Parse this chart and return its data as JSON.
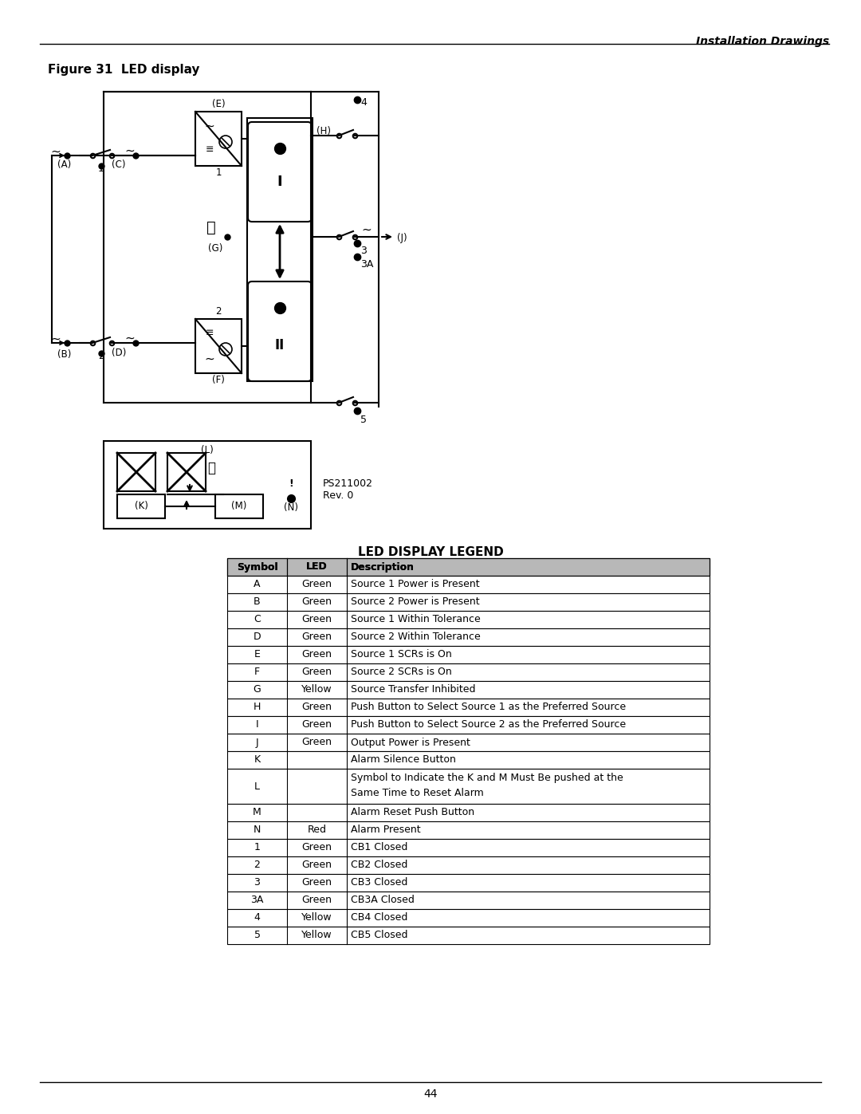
{
  "header_text": "Installation Drawings",
  "figure_title": "Figure 31  LED display",
  "legend_title": "LED DISPLAY LEGEND",
  "page_number": "44",
  "ps_number": "PS211002\nRev. 0",
  "table_headers": [
    "Symbol",
    "LED",
    "Description"
  ],
  "table_rows": [
    [
      "A",
      "Green",
      "Source 1 Power is Present"
    ],
    [
      "B",
      "Green",
      "Source 2 Power is Present"
    ],
    [
      "C",
      "Green",
      "Source 1 Within Tolerance"
    ],
    [
      "D",
      "Green",
      "Source 2 Within Tolerance"
    ],
    [
      "E",
      "Green",
      "Source 1 SCRs is On"
    ],
    [
      "F",
      "Green",
      "Source 2 SCRs is On"
    ],
    [
      "G",
      "Yellow",
      "Source Transfer Inhibited"
    ],
    [
      "H",
      "Green",
      "Push Button to Select Source 1 as the Preferred Source"
    ],
    [
      "I",
      "Green",
      "Push Button to Select Source 2 as the Preferred Source"
    ],
    [
      "J",
      "Green",
      "Output Power is Present"
    ],
    [
      "K",
      "",
      "Alarm Silence Button"
    ],
    [
      "L",
      "",
      "Symbol to Indicate the K and M Must Be pushed at the\nSame Time to Reset Alarm"
    ],
    [
      "M",
      "",
      "Alarm Reset Push Button"
    ],
    [
      "N",
      "Red",
      "Alarm Present"
    ],
    [
      "1",
      "Green",
      "CB1 Closed"
    ],
    [
      "2",
      "Green",
      "CB2 Closed"
    ],
    [
      "3",
      "Green",
      "CB3 Closed"
    ],
    [
      "3A",
      "Green",
      "CB3A Closed"
    ],
    [
      "4",
      "Yellow",
      "CB4 Closed"
    ],
    [
      "5",
      "Yellow",
      "CB5 Closed"
    ]
  ],
  "background_color": "#ffffff"
}
